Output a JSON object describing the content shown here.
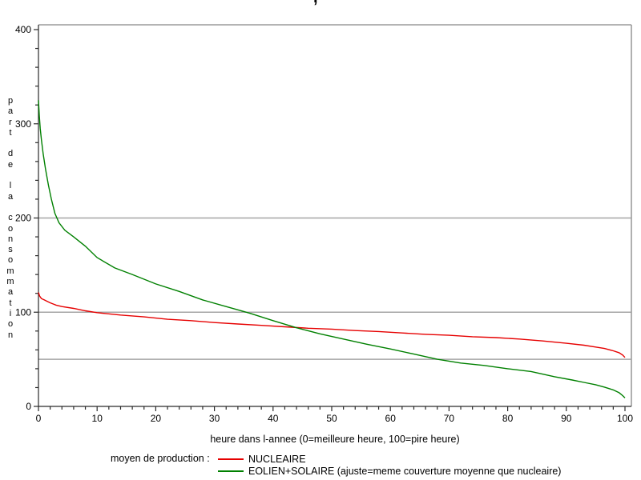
{
  "chart_data": {
    "type": "line",
    "title_fragment": ",",
    "xlabel": "heure dans l-annee (0=meilleure heure, 100=pire heure)",
    "ylabel": "part de la consommation",
    "xlim": [
      0,
      100
    ],
    "ylim": [
      0,
      400
    ],
    "x_ticks_major": [
      0,
      10,
      20,
      30,
      40,
      50,
      60,
      70,
      80,
      90,
      100
    ],
    "x_minor_step": 2,
    "y_ticks_major": [
      0,
      100,
      200,
      300,
      400
    ],
    "y_minor_step": 20,
    "ref_lines_y": [
      50,
      100,
      200
    ],
    "grid_on": true,
    "grid_color": "#a5a5a5",
    "frame_color": "#9c9c9c",
    "axis_color": "#2a2a2a",
    "legend": {
      "title": "moyen de production :",
      "position": "bottom",
      "entries": [
        {
          "label": "NUCLEAIRE"
        },
        {
          "label": "EOLIEN+SOLAIRE (ajuste=meme couverture moyenne que nucleaire)"
        }
      ]
    },
    "series": [
      {
        "name": "NUCLEAIRE",
        "color": "#e60000",
        "x": [
          0,
          0.2,
          0.5,
          1,
          1.5,
          2,
          3,
          4,
          6,
          8,
          10,
          14,
          18,
          22,
          26,
          30,
          34,
          38,
          42,
          46,
          50,
          54,
          58,
          62,
          66,
          70,
          74,
          78,
          82,
          86,
          90,
          93,
          95,
          96.5,
          98,
          99,
          99.6,
          100
        ],
        "y": [
          121,
          117,
          114.5,
          113,
          111.5,
          110,
          107.5,
          106,
          104,
          101.5,
          99.5,
          97,
          95,
          92.5,
          91,
          89,
          87.5,
          86,
          84.5,
          83,
          82,
          80.5,
          79.5,
          78,
          76.5,
          75.5,
          74,
          73,
          71.5,
          69.5,
          67,
          65,
          63,
          61.5,
          59,
          57,
          54.5,
          52
        ]
      },
      {
        "name": "EOLIEN+SOLAIRE",
        "color": "#008000",
        "x": [
          0,
          0.15,
          0.3,
          0.5,
          0.8,
          1.2,
          1.7,
          2.2,
          2.8,
          3.5,
          4.5,
          6,
          8,
          10,
          13,
          16,
          20,
          24,
          28,
          32,
          36,
          40,
          44,
          48,
          52,
          56,
          60,
          64,
          68,
          72,
          76,
          80,
          84,
          88,
          91,
          93,
          95,
          96.5,
          98,
          99,
          99.6,
          100
        ],
        "y": [
          325,
          308,
          295,
          283,
          268,
          252,
          235,
          220,
          205,
          195,
          187,
          180,
          170,
          158,
          147,
          140,
          130,
          122,
          113,
          106,
          99,
          91,
          83.5,
          77,
          71.5,
          66,
          61,
          55.5,
          50,
          46,
          43.5,
          40,
          37,
          31.5,
          28,
          25.5,
          23,
          20.5,
          17.5,
          14.5,
          11.5,
          9
        ]
      }
    ]
  }
}
